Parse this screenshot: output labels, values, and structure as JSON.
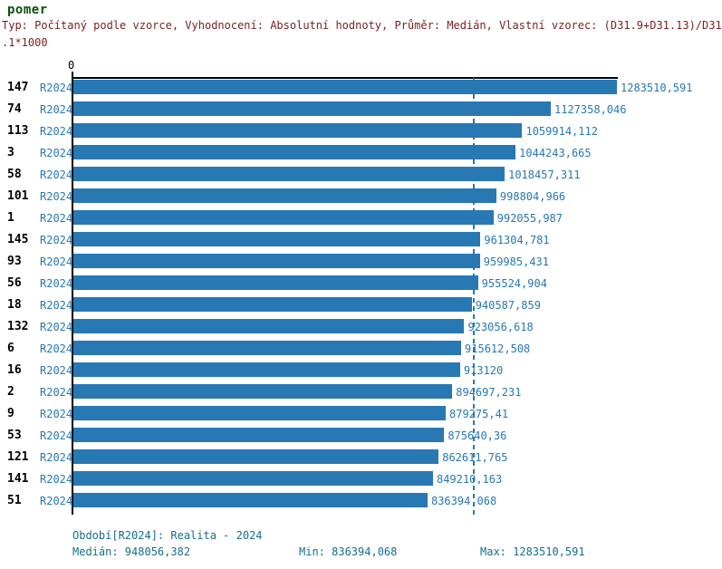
{
  "header": {
    "title": "pomer",
    "subtitle_line1": "Typ: Počítaný podle vzorce, Vyhodnocení: Absolutní hodnoty, Průměr: Medián, Vlastní vzorec: (D31.9+D31.13)/D31",
    "subtitle_line2": ".1*1000"
  },
  "chart_data": {
    "type": "bar",
    "orientation": "horizontal",
    "title": "pomer",
    "axis_zero_label": "0",
    "xlim": [
      0,
      1283510.591
    ],
    "grid": false,
    "median": 948056.382,
    "min": 836394.068,
    "max": 1283510.591,
    "categories": [
      "147",
      "74",
      "113",
      "3",
      "58",
      "101",
      "1",
      "145",
      "93",
      "56",
      "18",
      "132",
      "6",
      "16",
      "2",
      "9",
      "53",
      "121",
      "141",
      "51"
    ],
    "series": [
      {
        "name": "R2024",
        "values": [
          1283510.591,
          1127358.046,
          1059914.112,
          1044243.665,
          1018457.311,
          998804.966,
          992055.987,
          961304.781,
          959985.431,
          955524.904,
          940587.859,
          923056.618,
          915612.508,
          913120,
          894697.231,
          879275.41,
          875640.36,
          862611.765,
          849210.163,
          836394.068
        ]
      }
    ],
    "value_labels": [
      "1283510,591",
      "1127358,046",
      "1059914,112",
      "1044243,665",
      "1018457,311",
      "998804,966",
      "992055,987",
      "961304,781",
      "959985,431",
      "955524,904",
      "940587,859",
      "923056,618",
      "915612,508",
      "913120",
      "894697,231",
      "879275,41",
      "875640,36",
      "862611,765",
      "849210,163",
      "836394,068"
    ]
  },
  "colors": {
    "bar": "#2878B4",
    "label_blue": "#2878B4",
    "footer_teal": "#166E8E",
    "title_green": "#0A500A",
    "subtitle_red": "#7A1F1F",
    "axis_black": "#000000"
  },
  "footer": {
    "period_label": "Období[R2024]: Realita - 2024",
    "median_label": "Medián: 948056,382",
    "min_label": "Min: 836394,068",
    "max_label": "Max: 1283510,591"
  }
}
